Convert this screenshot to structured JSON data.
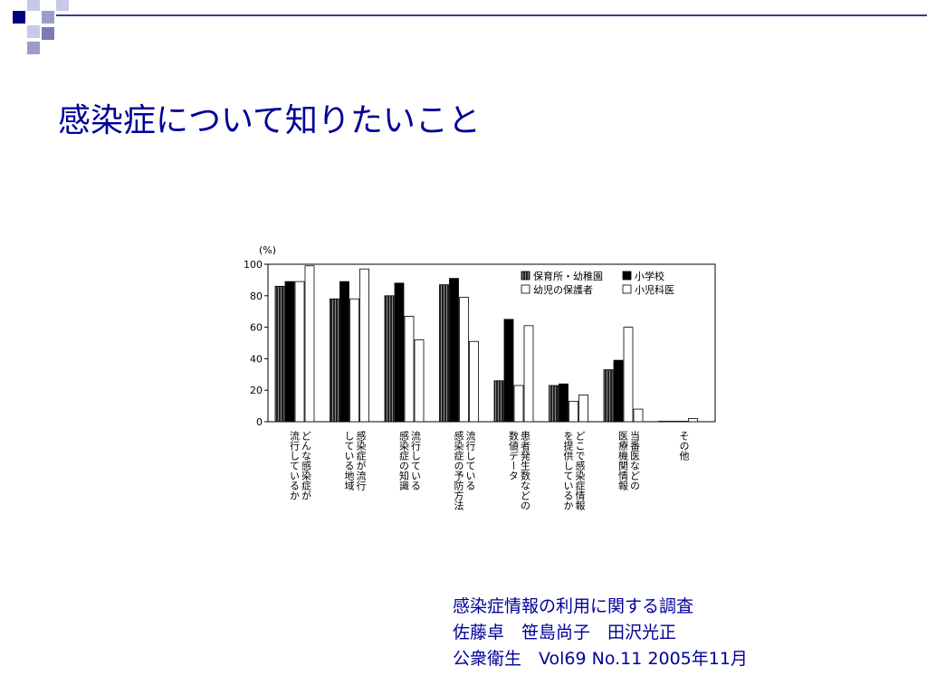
{
  "slide": {
    "title": "感染症について知りたいこと",
    "accent_color": "#3b3b8f",
    "title_color": "#000099"
  },
  "citation": {
    "line1": "感染症情報の利用に関する調査",
    "line2": "佐藤卓　笹島尚子　田沢光正",
    "line3": "公衆衛生　Vol69 No.11 2005年11月"
  },
  "chart_data": {
    "type": "bar",
    "unit_label": "(%)",
    "ylim": [
      0,
      100
    ],
    "yticks": [
      "0",
      "20",
      "40",
      "60",
      "80",
      "100"
    ],
    "grid": false,
    "legend_position": "top-right",
    "categories": [
      "どんな感染症が流行しているか",
      "感染症が流行している地域",
      "流行している感染症の知識",
      "流行している感染症の予防方法",
      "患者発生数などの数値データ",
      "どこで感染症情報を提供しているか",
      "当番医などの医療機関情報",
      "その他"
    ],
    "category_label_lines": [
      [
        "どんな感染症が",
        "流行しているか"
      ],
      [
        "感染症が流行",
        "している地域"
      ],
      [
        "流行している",
        "感染症の知識"
      ],
      [
        "流行している",
        "感染症の予防方法"
      ],
      [
        "患者発生数などの",
        "数値データ"
      ],
      [
        "どこで感染症情報",
        "を提供しているか"
      ],
      [
        "当番医などの",
        "医療機関情報"
      ],
      [
        "その他"
      ]
    ],
    "series": [
      {
        "name": "保育所・幼稚園",
        "fill": "hatched-dark",
        "values": [
          86,
          78,
          80,
          87,
          26,
          23,
          33,
          0
        ]
      },
      {
        "name": "小学校",
        "fill": "black",
        "values": [
          89,
          89,
          88,
          91,
          65,
          24,
          39,
          0
        ]
      },
      {
        "name": "幼児の保護者",
        "fill": "white",
        "values": [
          89,
          78,
          67,
          79,
          23,
          13,
          60,
          0
        ]
      },
      {
        "name": "小児科医",
        "fill": "white",
        "values": [
          99,
          97,
          52,
          51,
          61,
          17,
          8,
          2
        ]
      }
    ]
  }
}
